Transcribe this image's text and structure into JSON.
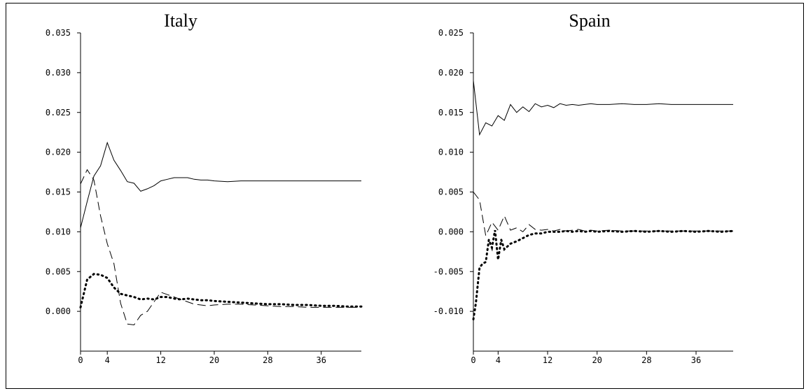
{
  "chart_data": [
    {
      "type": "line",
      "title": "Italy",
      "xlabel": "",
      "ylabel": "",
      "xlim": [
        0,
        42
      ],
      "ylim": [
        -0.005,
        0.035
      ],
      "xticks": [
        "0",
        "4",
        "12",
        "20",
        "28",
        "36"
      ],
      "yticks": [
        "0.035",
        "0.030",
        "0.025",
        "0.020",
        "0.015",
        "0.010",
        "0.005",
        "0.000"
      ],
      "grid": false,
      "series": [
        {
          "style": "solid",
          "x": [
            0,
            1,
            2,
            3,
            4,
            5,
            6,
            7,
            8,
            9,
            10,
            11,
            12,
            13,
            14,
            15,
            16,
            17,
            18,
            19,
            20,
            22,
            24,
            26,
            28,
            30,
            32,
            34,
            36,
            38,
            40,
            42
          ],
          "y": [
            0.0105,
            0.0138,
            0.017,
            0.0183,
            0.0212,
            0.019,
            0.0177,
            0.0163,
            0.0161,
            0.0151,
            0.0154,
            0.0158,
            0.0164,
            0.0166,
            0.0168,
            0.0168,
            0.0168,
            0.0166,
            0.0165,
            0.0165,
            0.0164,
            0.0163,
            0.0164,
            0.0164,
            0.0164,
            0.0164,
            0.0164,
            0.0164,
            0.0164,
            0.0164,
            0.0164,
            0.0164
          ]
        },
        {
          "style": "dashed",
          "x": [
            0,
            1,
            2,
            3,
            4,
            5,
            6,
            7,
            8,
            9,
            10,
            11,
            12,
            13,
            14,
            15,
            16,
            17,
            18,
            19,
            20,
            22,
            24,
            26,
            28,
            30,
            32,
            34,
            36,
            38,
            40,
            42
          ],
          "y": [
            0.016,
            0.0178,
            0.0165,
            0.012,
            0.0085,
            0.006,
            0.001,
            -0.0016,
            -0.0017,
            -0.0005,
            0.0,
            0.0012,
            0.0024,
            0.0021,
            0.0018,
            0.0015,
            0.0012,
            0.0009,
            0.0008,
            0.0007,
            0.0008,
            0.0009,
            0.0009,
            0.0008,
            0.0007,
            0.0006,
            0.0006,
            0.0005,
            0.0005,
            0.0005,
            0.0005,
            0.0005
          ]
        },
        {
          "style": "dotted",
          "x": [
            0,
            1,
            2,
            3,
            4,
            5,
            6,
            7,
            8,
            9,
            10,
            11,
            12,
            13,
            14,
            15,
            16,
            17,
            18,
            19,
            20,
            22,
            24,
            26,
            28,
            30,
            32,
            34,
            36,
            38,
            40,
            42
          ],
          "y": [
            0.0005,
            0.004,
            0.0047,
            0.0046,
            0.0042,
            0.003,
            0.0022,
            0.002,
            0.0018,
            0.0015,
            0.0016,
            0.0015,
            0.0018,
            0.0018,
            0.0016,
            0.0015,
            0.0016,
            0.0015,
            0.0014,
            0.0014,
            0.0013,
            0.0012,
            0.0011,
            0.001,
            0.0009,
            0.0009,
            0.0008,
            0.0008,
            0.0007,
            0.0007,
            0.0006,
            0.0006
          ]
        }
      ]
    },
    {
      "type": "line",
      "title": "Spain",
      "xlabel": "",
      "ylabel": "",
      "xlim": [
        0,
        42
      ],
      "ylim": [
        -0.015,
        0.025
      ],
      "xticks": [
        "0",
        "4",
        "12",
        "20",
        "28",
        "36"
      ],
      "yticks": [
        "0.025",
        "0.020",
        "0.015",
        "0.010",
        "0.005",
        "0.000",
        "-0.005",
        "-0.010"
      ],
      "grid": false,
      "series": [
        {
          "style": "solid",
          "x": [
            0,
            1,
            2,
            3,
            4,
            5,
            6,
            7,
            8,
            9,
            10,
            11,
            12,
            13,
            14,
            15,
            16,
            17,
            18,
            19,
            20,
            22,
            24,
            26,
            28,
            30,
            32,
            34,
            36,
            38,
            40,
            42
          ],
          "y": [
            0.019,
            0.0122,
            0.0137,
            0.0133,
            0.0146,
            0.014,
            0.016,
            0.015,
            0.0157,
            0.0151,
            0.0161,
            0.0157,
            0.0159,
            0.0156,
            0.0161,
            0.0159,
            0.016,
            0.0159,
            0.016,
            0.0161,
            0.016,
            0.016,
            0.0161,
            0.016,
            0.016,
            0.0161,
            0.016,
            0.016,
            0.016,
            0.016,
            0.016,
            0.016
          ]
        },
        {
          "style": "dashed",
          "x": [
            0,
            1,
            2,
            3,
            4,
            5,
            6,
            7,
            8,
            9,
            10,
            11,
            12,
            13,
            14,
            15,
            16,
            17,
            18,
            19,
            20,
            22,
            24,
            26,
            28,
            30,
            32,
            34,
            36,
            38,
            40,
            42
          ],
          "y": [
            0.005,
            0.004,
            -0.0005,
            0.0012,
            0.0002,
            0.002,
            0.0002,
            0.0005,
            0.0,
            0.0009,
            0.0003,
            0.0002,
            0.0003,
            0.0001,
            0.0003,
            0.0001,
            0.0002,
            0.0003,
            0.0001,
            0.0002,
            0.0001,
            0.0002,
            0.0001,
            0.0001,
            0.0001,
            0.0001,
            0.0001,
            0.0001,
            0.0001,
            0.0001,
            0.0001,
            0.0001
          ]
        },
        {
          "style": "dotted",
          "x": [
            0,
            0.4,
            1,
            1.5,
            2,
            2.5,
            3,
            3.5,
            4,
            4.5,
            5,
            6,
            7,
            8,
            9,
            10,
            11,
            12,
            13,
            14,
            15,
            16,
            17,
            18,
            19,
            20,
            22,
            24,
            26,
            28,
            30,
            32,
            34,
            36,
            38,
            40,
            42
          ],
          "y": [
            -0.011,
            -0.009,
            -0.0045,
            -0.004,
            -0.0038,
            -0.001,
            -0.002,
            0.0002,
            -0.0035,
            -0.001,
            -0.0022,
            -0.0015,
            -0.0012,
            -0.0008,
            -0.0004,
            -0.0002,
            -0.0002,
            0.0,
            0.0,
            0.0,
            0.0001,
            0.0,
            0.0001,
            0.0,
            0.0001,
            0.0,
            0.0001,
            0.0,
            0.0001,
            0.0,
            0.0001,
            0.0,
            0.0001,
            0.0,
            0.0001,
            0.0,
            0.0001
          ]
        }
      ]
    }
  ]
}
